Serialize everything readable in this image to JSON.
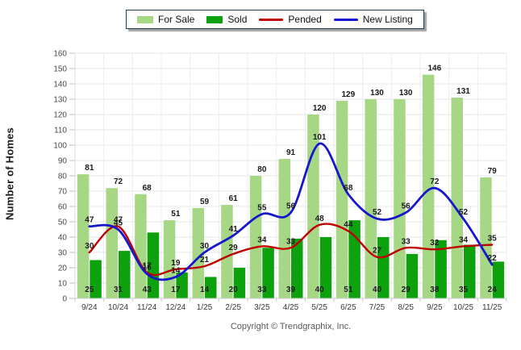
{
  "chart": {
    "y_axis_title": "Number of Homes",
    "y_min": 0,
    "y_max": 160,
    "y_step": 10
  },
  "legend": {
    "items": [
      {
        "label": "For Sale",
        "swatch": "bar",
        "color": "#a6d785"
      },
      {
        "label": "Sold",
        "swatch": "bar",
        "color": "#0da10d"
      },
      {
        "label": "Pended",
        "swatch": "line",
        "color": "#c00000"
      },
      {
        "label": "New Listing",
        "swatch": "line",
        "color": "#1616ce"
      }
    ]
  },
  "footer": {
    "copyright": "Copyright © Trendgraphix, Inc."
  },
  "chart_data": {
    "type": "bar",
    "title": "",
    "xlabel": "",
    "ylabel": "Number of Homes",
    "ylim": [
      0,
      160
    ],
    "y_step": 10,
    "grid": true,
    "legend_position": "top",
    "categories": [
      "9/24",
      "10/24",
      "11/24",
      "12/24",
      "1/25",
      "2/25",
      "3/25",
      "4/25",
      "5/25",
      "6/25",
      "7/25",
      "8/25",
      "9/25",
      "10/25",
      "11/25"
    ],
    "series": [
      {
        "name": "For Sale",
        "type": "bar",
        "color": "#a6d785",
        "values": [
          81,
          72,
          68,
          51,
          59,
          61,
          80,
          91,
          120,
          129,
          130,
          130,
          146,
          131,
          79
        ]
      },
      {
        "name": "Sold",
        "type": "bar",
        "color": "#0da10d",
        "values": [
          25,
          31,
          43,
          17,
          14,
          20,
          33,
          39,
          40,
          51,
          40,
          29,
          38,
          35,
          24
        ]
      },
      {
        "name": "Pended",
        "type": "line",
        "color": "#c00000",
        "values": [
          30,
          47,
          17,
          19,
          21,
          29,
          34,
          33,
          48,
          44,
          27,
          33,
          32,
          34,
          35
        ]
      },
      {
        "name": "New Listing",
        "type": "line",
        "color": "#1616ce",
        "values": [
          47,
          45,
          16,
          14,
          30,
          41,
          55,
          56,
          101,
          68,
          52,
          56,
          72,
          52,
          22
        ]
      }
    ]
  }
}
